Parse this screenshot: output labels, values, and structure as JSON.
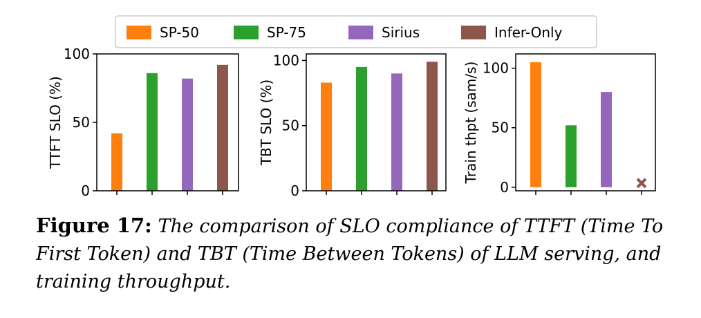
{
  "legend": [
    {
      "label": "SP-50",
      "color": "#ff7f0e"
    },
    {
      "label": "SP-75",
      "color": "#2ca02c"
    },
    {
      "label": "Sirius",
      "color": "#9467bd"
    },
    {
      "label": "Infer-Only",
      "color": "#8c564b"
    }
  ],
  "chart_data": [
    {
      "type": "bar",
      "title": "",
      "xlabel": "",
      "ylabel": "TTFT SLO (%)",
      "ylim": [
        0,
        100
      ],
      "yticks": [
        0,
        50,
        100
      ],
      "categories": [
        "SP-50",
        "SP-75",
        "Sirius",
        "Infer-Only"
      ],
      "values": [
        42,
        86,
        82,
        92
      ],
      "failed": []
    },
    {
      "type": "bar",
      "title": "",
      "xlabel": "",
      "ylabel": "TBT SLO (%)",
      "ylim": [
        0,
        105
      ],
      "yticks": [
        0,
        50,
        100
      ],
      "categories": [
        "SP-50",
        "SP-75",
        "Sirius",
        "Infer-Only"
      ],
      "values": [
        83,
        95,
        90,
        99
      ],
      "failed": []
    },
    {
      "type": "bar",
      "title": "",
      "xlabel": "",
      "ylabel": "Train thpt (sam/s)",
      "ylim": [
        -3,
        112
      ],
      "yticks": [
        0,
        50,
        100
      ],
      "categories": [
        "SP-50",
        "SP-75",
        "Sirius",
        "Infer-Only"
      ],
      "values": [
        105,
        52,
        80,
        0
      ],
      "failed": [
        "Infer-Only"
      ]
    }
  ],
  "caption": {
    "label": "Figure 17:",
    "text": "The comparison of SLO compliance of TTFT (Time To First Token) and TBT (Time Between Tokens) of LLM serving, and training throughput."
  }
}
